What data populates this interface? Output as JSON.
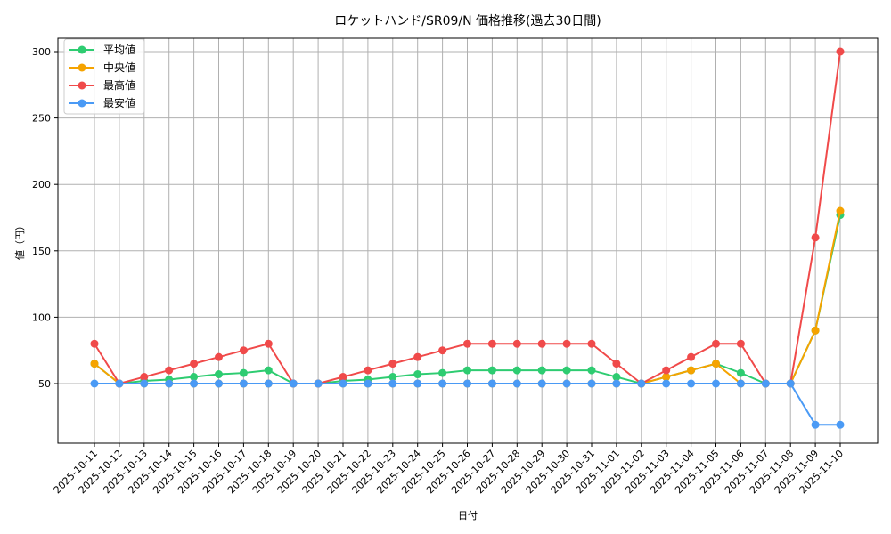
{
  "chart_data": {
    "type": "line",
    "title": "ロケットハンド/SR09/N 価格推移(過去30日間)",
    "xlabel": "日付",
    "ylabel": "値（円）",
    "ylim": [
      5,
      315
    ],
    "yticks": [
      50,
      100,
      150,
      200,
      250,
      300
    ],
    "grid": true,
    "legend_position": "upper left",
    "categories": [
      "2025-10-11",
      "2025-10-12",
      "2025-10-13",
      "2025-10-14",
      "2025-10-15",
      "2025-10-16",
      "2025-10-17",
      "2025-10-18",
      "2025-10-19",
      "2025-10-20",
      "2025-10-21",
      "2025-10-22",
      "2025-10-23",
      "2025-10-24",
      "2025-10-25",
      "2025-10-26",
      "2025-10-27",
      "2025-10-28",
      "2025-10-29",
      "2025-10-30",
      "2025-10-31",
      "2025-11-01",
      "2025-11-02",
      "2025-11-03",
      "2025-11-04",
      "2025-11-05",
      "2025-11-06",
      "2025-11-07",
      "2025-11-08",
      "2025-11-09",
      "2025-11-10"
    ],
    "series": [
      {
        "name": "平均値",
        "color": "#2ecc71",
        "values": [
          65,
          50,
          52,
          53,
          55,
          57,
          58,
          60,
          50,
          50,
          52,
          53,
          55,
          57,
          58,
          60,
          60,
          60,
          60,
          60,
          60,
          55,
          50,
          55,
          60,
          65,
          58,
          50,
          50,
          90,
          177
        ]
      },
      {
        "name": "中央値",
        "color": "#f5a300",
        "values": [
          65,
          50,
          50,
          50,
          50,
          50,
          50,
          50,
          50,
          50,
          50,
          50,
          50,
          50,
          50,
          50,
          50,
          50,
          50,
          50,
          50,
          50,
          50,
          55,
          60,
          65,
          50,
          50,
          50,
          90,
          180
        ]
      },
      {
        "name": "最高値",
        "color": "#f04a4a",
        "values": [
          80,
          50,
          55,
          60,
          65,
          70,
          75,
          80,
          50,
          50,
          55,
          60,
          65,
          70,
          75,
          80,
          80,
          80,
          80,
          80,
          80,
          65,
          50,
          60,
          70,
          80,
          80,
          50,
          50,
          160,
          300
        ]
      },
      {
        "name": "最安値",
        "color": "#4a9af5",
        "values": [
          50,
          50,
          50,
          50,
          50,
          50,
          50,
          50,
          50,
          50,
          50,
          50,
          50,
          50,
          50,
          50,
          50,
          50,
          50,
          50,
          50,
          50,
          50,
          50,
          50,
          50,
          50,
          50,
          50,
          19,
          19
        ]
      }
    ]
  }
}
